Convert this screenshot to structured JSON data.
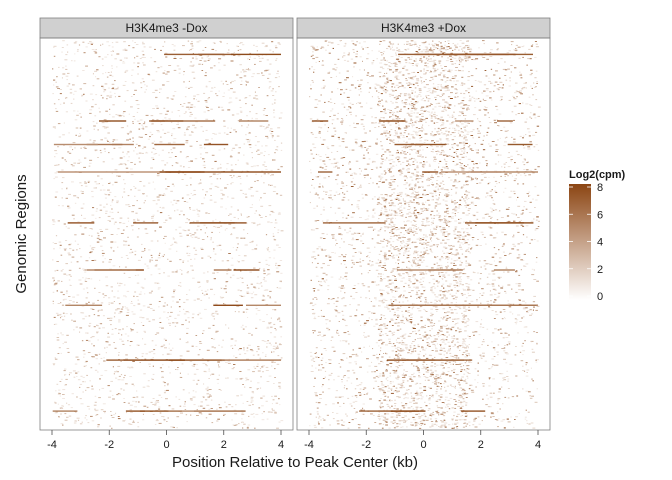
{
  "chart_data": {
    "type": "heatmap",
    "facets": [
      "H3K4me3 -Dox",
      "H3K4me3 +Dox"
    ],
    "xlabel": "Position Relative to Peak Center (kb)",
    "ylabel": "Genomic Regions",
    "xlim": [
      -4,
      4
    ],
    "xticks": [
      -4,
      -2,
      0,
      2,
      4
    ],
    "x_tick_labels": [
      "-4",
      "-2",
      "0",
      "2",
      "4"
    ],
    "color_scale": {
      "title": "Log2(cpm)",
      "min": 0,
      "max": 8,
      "breaks": [
        0,
        2,
        4,
        6,
        8
      ],
      "break_labels": [
        "0",
        "2",
        "4",
        "6",
        "8"
      ],
      "low_color": "#ffffff",
      "high_color": "#8b4513"
    },
    "legend_position": "right",
    "grid": false,
    "prominent_region_rows": [
      0.04,
      0.21,
      0.27,
      0.34,
      0.47,
      0.59,
      0.68,
      0.82,
      0.95
    ],
    "background_density": {
      "H3K4me3 -Dox": "sparse low signal",
      "H3K4me3 +Dox": "denser signal, enriched near peak center"
    }
  }
}
